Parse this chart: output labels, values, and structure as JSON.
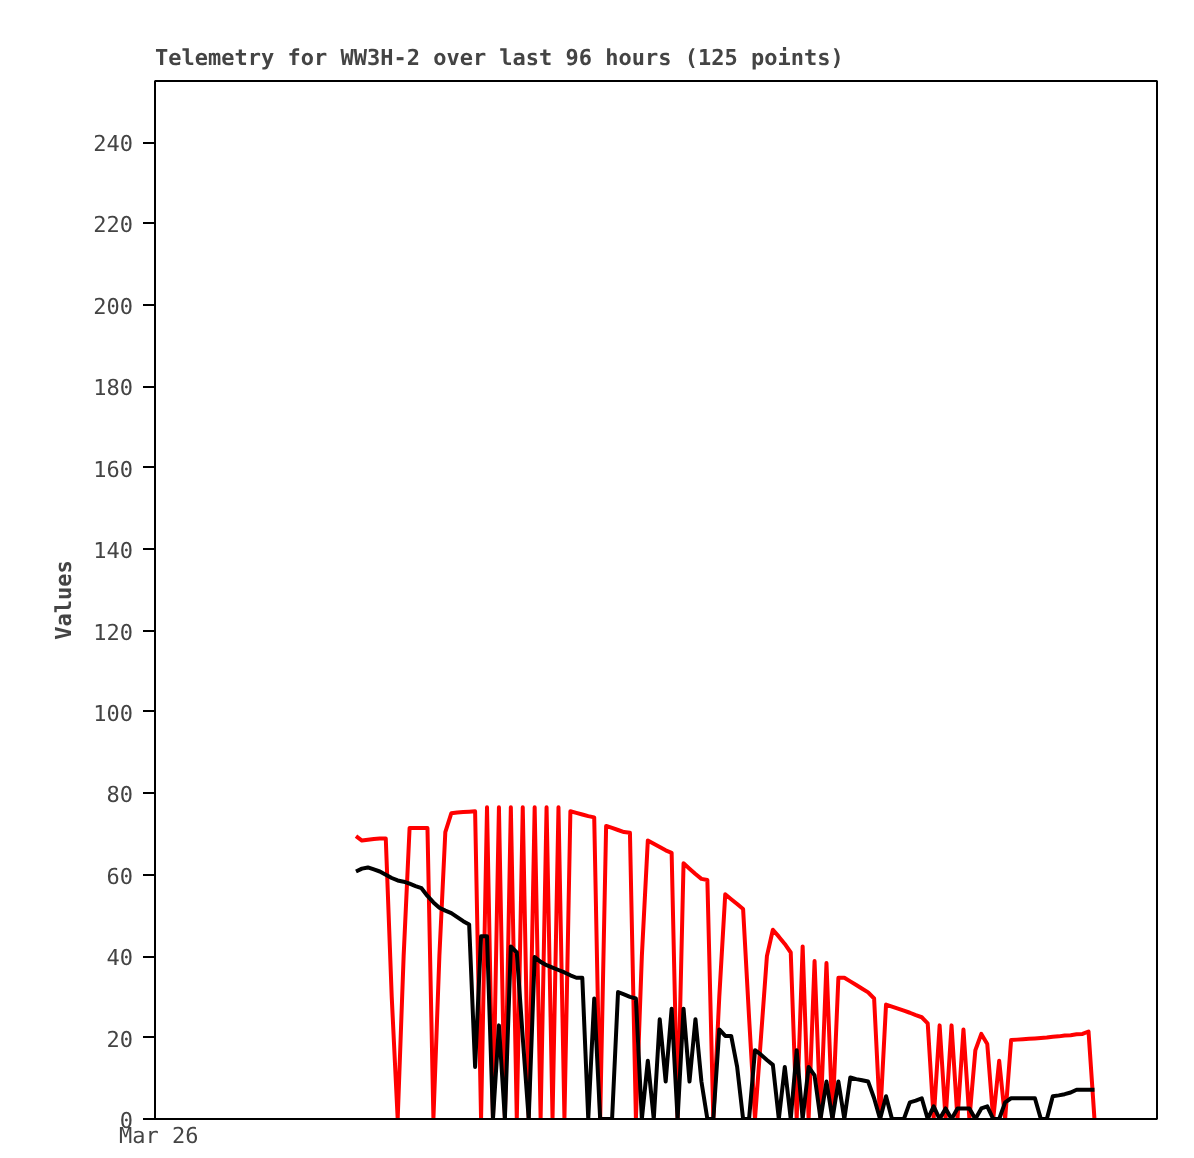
{
  "chart_data": {
    "type": "line",
    "title": "Telemetry for WW3H-2 over last 96 hours (125 points)",
    "ylabel": "Values",
    "categories": [
      null,
      null,
      null,
      null,
      null,
      null,
      null,
      null,
      null,
      null,
      null,
      null,
      null,
      null,
      null,
      null,
      null,
      null,
      null,
      null,
      null,
      null,
      null,
      null,
      null,
      null,
      null,
      null,
      null,
      null,
      null,
      null,
      null,
      null,
      null,
      null,
      null,
      null,
      null,
      null,
      null,
      null,
      null,
      null,
      null,
      null,
      null,
      null,
      null,
      null,
      null,
      null,
      null,
      null,
      null,
      null,
      null,
      null,
      null,
      null,
      null,
      null,
      null,
      null,
      null,
      null,
      null,
      null,
      null,
      null,
      null,
      null,
      null,
      null,
      null,
      null,
      null,
      null,
      null,
      null,
      null,
      null,
      null,
      null,
      null,
      null,
      null,
      null,
      null,
      null,
      null,
      null,
      null,
      null,
      null,
      null,
      null,
      null,
      null,
      null,
      null,
      null,
      null,
      null,
      null,
      null,
      null,
      null,
      null,
      null,
      null,
      null,
      null,
      null,
      null,
      null,
      null,
      null,
      null,
      null,
      null,
      null,
      null,
      null,
      null
    ],
    "annotations": [
      "Mar 26"
    ],
    "ylim": [
      0,
      255
    ],
    "yticks": [
      0,
      20,
      40,
      60,
      80,
      100,
      120,
      140,
      160,
      180,
      200,
      220,
      240
    ],
    "series": [
      {
        "color": "#ff0000",
        "values": [
          69.5,
          68.4,
          68.6,
          68.8,
          68.9,
          68.9,
          30,
          0,
          40,
          71.5,
          71.5,
          71.5,
          71.5,
          0,
          40,
          70.5,
          75.1,
          75.3,
          75.4,
          75.5,
          75.6,
          0,
          76.6,
          0,
          76.6,
          0,
          76.6,
          0,
          76.6,
          0,
          76.6,
          0,
          76.6,
          0,
          76.6,
          0,
          75.6,
          75.2,
          74.8,
          74.4,
          74.1,
          0,
          72.0,
          71.5,
          71.0,
          70.5,
          70.3,
          0,
          40,
          68.4,
          67.6,
          66.8,
          66.0,
          65.4,
          0,
          62.8,
          61.5,
          60.2,
          59.0,
          58.7,
          0,
          30,
          55.2,
          54.0,
          52.8,
          51.6,
          25,
          0,
          20,
          40,
          46.5,
          44.8,
          43.0,
          40.9,
          0,
          42.4,
          0,
          38.8,
          0,
          38.3,
          0,
          34.7,
          34.7,
          33.8,
          32.9,
          32.0,
          31.1,
          29.6,
          0,
          28.1,
          27.6,
          27.1,
          26.6,
          26.1,
          25.5,
          25.0,
          23.5,
          0,
          23.0,
          0,
          23.0,
          0,
          22.0,
          0,
          16.9,
          20.9,
          18.4,
          0,
          14.3,
          0,
          19.4,
          19.5,
          19.6,
          19.7,
          19.8,
          19.9,
          20.0,
          20.2,
          20.3,
          20.5,
          20.6,
          20.8,
          20.9,
          21.5,
          0
        ]
      },
      {
        "color": "#000000",
        "values": [
          60.8,
          61.5,
          61.8,
          61.3,
          60.8,
          60.0,
          59.2,
          58.6,
          58.3,
          57.8,
          57.2,
          56.7,
          54.8,
          53.2,
          51.9,
          51.2,
          50.6,
          49.6,
          48.6,
          47.8,
          12.8,
          44.9,
          44.9,
          0,
          23.0,
          0,
          42.4,
          40.9,
          20,
          0,
          39.8,
          38.6,
          37.8,
          37.2,
          36.6,
          36.0,
          35.3,
          34.7,
          34.7,
          0,
          29.6,
          0,
          0,
          0,
          31.2,
          30.6,
          30.0,
          29.6,
          0,
          14.3,
          0,
          24.5,
          9.2,
          27.1,
          0,
          27.1,
          9.2,
          24.5,
          9.2,
          0,
          0,
          22.0,
          20.4,
          20.4,
          12.8,
          0,
          0,
          16.9,
          15.8,
          14.5,
          13.3,
          0,
          12.8,
          0,
          16.9,
          0,
          12.8,
          10.7,
          0,
          9.2,
          0,
          9.2,
          0,
          10.2,
          9.8,
          9.5,
          9.2,
          5.1,
          0,
          5.6,
          0,
          0,
          0,
          4.1,
          4.5,
          5.1,
          0,
          3.1,
          0,
          2.6,
          0,
          2.6,
          2.6,
          2.6,
          0,
          2.6,
          3.1,
          0,
          0,
          4.1,
          5.1,
          5.1,
          5.1,
          5.1,
          5.1,
          0,
          0,
          5.6,
          5.8,
          6.1,
          6.5,
          7.2,
          7.2,
          7.2,
          7.2
        ]
      }
    ]
  }
}
